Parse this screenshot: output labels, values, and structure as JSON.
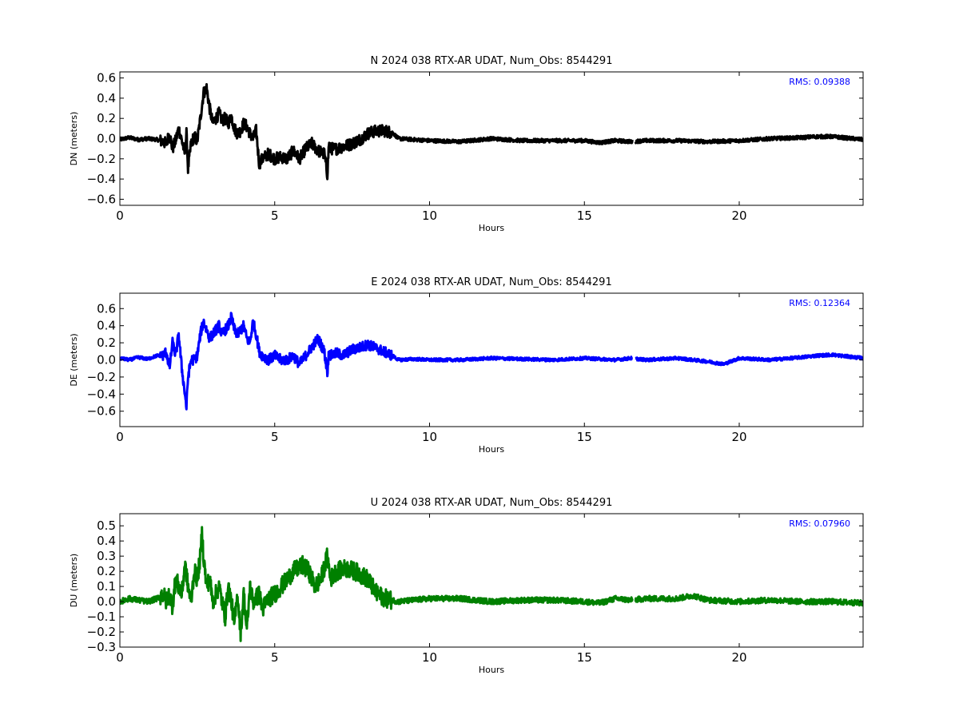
{
  "chart_data": [
    {
      "type": "line",
      "title": "N 2024 038 RTX-AR  UDAT, Num_Obs: 8544291",
      "xlabel": "Hours",
      "ylabel": "DN (meters)",
      "xlim": [
        0,
        24
      ],
      "ylim": [
        -0.66,
        0.66
      ],
      "xticks": [
        0,
        5,
        10,
        15,
        20
      ],
      "xtick_labels": [
        "0",
        "5",
        "10",
        "15",
        "20"
      ],
      "yticks": [
        -0.6,
        -0.4,
        -0.2,
        0.0,
        0.2,
        0.4,
        0.6
      ],
      "ytick_labels": [
        "−0.6",
        "−0.4",
        "−0.2",
        "0.0",
        "0.2",
        "0.4",
        "0.6"
      ],
      "annotation": "RMS:  0.09388",
      "annotation_color": "#0000ff",
      "line_color": "#000000",
      "grid": false,
      "gap": [
        16.55,
        16.65
      ],
      "series": [
        {
          "x": [
            0,
            0.3,
            0.6,
            0.9,
            1.2,
            1.4,
            1.5,
            1.6,
            1.7,
            1.8,
            1.9,
            2.0,
            2.1,
            2.15,
            2.2,
            2.3,
            2.4,
            2.5,
            2.6,
            2.7,
            2.8,
            2.9,
            3.0,
            3.1,
            3.2,
            3.3,
            3.4,
            3.5,
            3.6,
            3.7,
            3.8,
            3.9,
            4.0,
            4.1,
            4.2,
            4.3,
            4.4,
            4.5,
            4.6,
            4.8,
            5.0,
            5.2,
            5.4,
            5.6,
            5.8,
            6.0,
            6.2,
            6.4,
            6.6,
            6.7,
            6.75,
            6.8,
            7.0,
            7.2,
            7.5,
            7.8,
            8.0,
            8.2,
            8.5,
            8.8,
            9.0,
            9.5,
            10,
            11,
            12,
            13,
            14,
            15,
            15.5,
            16,
            16.5,
            17,
            18,
            19,
            20,
            21,
            22,
            22.5,
            23,
            24
          ],
          "y": [
            -0.01,
            0.01,
            -0.01,
            0.0,
            -0.01,
            -0.03,
            -0.05,
            0.05,
            -0.1,
            -0.02,
            0.1,
            -0.02,
            -0.15,
            0.05,
            -0.3,
            -0.05,
            0.02,
            -0.02,
            0.2,
            0.45,
            0.5,
            0.3,
            0.15,
            0.2,
            0.25,
            0.18,
            0.2,
            0.15,
            0.22,
            0.1,
            0.05,
            0.08,
            0.15,
            0.12,
            0.05,
            0.0,
            0.08,
            -0.25,
            -0.2,
            -0.15,
            -0.2,
            -0.18,
            -0.2,
            -0.12,
            -0.2,
            -0.1,
            -0.05,
            -0.12,
            -0.15,
            -0.35,
            -0.05,
            -0.1,
            -0.1,
            -0.08,
            -0.05,
            0.0,
            0.05,
            0.07,
            0.08,
            0.06,
            0.0,
            -0.01,
            -0.02,
            -0.03,
            0.0,
            -0.02,
            -0.02,
            -0.02,
            -0.04,
            -0.02,
            -0.03,
            -0.02,
            -0.02,
            -0.03,
            -0.02,
            0.0,
            0.01,
            0.02,
            0.02,
            -0.01
          ]
        }
      ]
    },
    {
      "type": "line",
      "title": "E 2024 038 RTX-AR  UDAT, Num_Obs: 8544291",
      "xlabel": "Hours",
      "ylabel": "DE (meters)",
      "xlim": [
        0,
        24
      ],
      "ylim": [
        -0.78,
        0.78
      ],
      "xticks": [
        0,
        5,
        10,
        15,
        20
      ],
      "xtick_labels": [
        "0",
        "5",
        "10",
        "15",
        "20"
      ],
      "yticks": [
        -0.6,
        -0.4,
        -0.2,
        0.0,
        0.2,
        0.4,
        0.6
      ],
      "ytick_labels": [
        "−0.6",
        "−0.4",
        "−0.2",
        "0.0",
        "0.2",
        "0.4",
        "0.6"
      ],
      "annotation": "RMS:  0.12364",
      "annotation_color": "#0000ff",
      "line_color": "#0000ff",
      "grid": false,
      "gap": [
        16.55,
        16.65
      ],
      "series": [
        {
          "x": [
            0,
            0.3,
            0.6,
            0.9,
            1.2,
            1.4,
            1.5,
            1.6,
            1.7,
            1.8,
            1.9,
            2.0,
            2.1,
            2.15,
            2.2,
            2.3,
            2.4,
            2.5,
            2.6,
            2.7,
            2.8,
            2.9,
            3.0,
            3.1,
            3.2,
            3.3,
            3.4,
            3.5,
            3.6,
            3.7,
            3.8,
            3.9,
            4.0,
            4.1,
            4.2,
            4.3,
            4.4,
            4.5,
            4.6,
            4.8,
            5.0,
            5.2,
            5.4,
            5.6,
            5.8,
            6.0,
            6.2,
            6.4,
            6.6,
            6.7,
            6.75,
            6.8,
            7.0,
            7.2,
            7.5,
            7.8,
            8.0,
            8.2,
            8.5,
            8.8,
            9.0,
            9.5,
            10,
            11,
            12,
            13,
            14,
            15,
            15.5,
            16,
            16.5,
            17,
            18,
            19,
            19.5,
            20,
            21,
            22,
            22.5,
            23,
            24
          ],
          "y": [
            0.02,
            0.0,
            0.03,
            0.01,
            0.05,
            0.05,
            0.1,
            -0.1,
            0.2,
            0.05,
            0.3,
            -0.1,
            -0.4,
            -0.55,
            -0.2,
            0.0,
            0.0,
            0.05,
            0.3,
            0.45,
            0.35,
            0.25,
            0.3,
            0.35,
            0.4,
            0.3,
            0.35,
            0.4,
            0.5,
            0.35,
            0.3,
            0.35,
            0.4,
            0.25,
            0.2,
            0.45,
            0.3,
            0.1,
            0.05,
            0.0,
            0.05,
            0.0,
            0.0,
            0.05,
            -0.05,
            0.05,
            0.15,
            0.25,
            0.1,
            -0.15,
            0.1,
            0.05,
            0.08,
            0.05,
            0.12,
            0.15,
            0.18,
            0.15,
            0.1,
            0.05,
            0.0,
            0.01,
            0.0,
            0.0,
            0.02,
            0.01,
            0.0,
            0.02,
            0.01,
            0.0,
            0.02,
            0.0,
            0.02,
            -0.02,
            -0.05,
            0.02,
            0.0,
            0.03,
            0.05,
            0.06,
            0.02
          ]
        }
      ]
    },
    {
      "type": "line",
      "title": "U 2024 038 RTX-AR  UDAT, Num_Obs: 8544291",
      "xlabel": "Hours",
      "ylabel": "DU (meters)",
      "xlim": [
        0,
        24
      ],
      "ylim": [
        -0.3,
        0.58
      ],
      "xticks": [
        0,
        5,
        10,
        15,
        20
      ],
      "xtick_labels": [
        "0",
        "5",
        "10",
        "15",
        "20"
      ],
      "yticks": [
        -0.3,
        -0.2,
        -0.1,
        0.0,
        0.1,
        0.2,
        0.3,
        0.4,
        0.5
      ],
      "ytick_labels": [
        "−0.3",
        "−0.2",
        "−0.1",
        "0.0",
        "0.1",
        "0.2",
        "0.3",
        "0.4",
        "0.5"
      ],
      "annotation": "RMS:  0.07960",
      "annotation_color": "#0000ff",
      "line_color": "#008000",
      "grid": false,
      "gap": [
        16.55,
        16.65
      ],
      "series": [
        {
          "x": [
            0,
            0.3,
            0.6,
            0.9,
            1.2,
            1.4,
            1.5,
            1.6,
            1.7,
            1.8,
            1.9,
            2.0,
            2.1,
            2.2,
            2.3,
            2.4,
            2.5,
            2.6,
            2.65,
            2.7,
            2.8,
            2.9,
            3.0,
            3.2,
            3.4,
            3.5,
            3.6,
            3.7,
            3.8,
            3.9,
            4.0,
            4.1,
            4.2,
            4.3,
            4.5,
            4.6,
            4.8,
            5.0,
            5.3,
            5.6,
            5.9,
            6.1,
            6.3,
            6.5,
            6.7,
            6.8,
            7.0,
            7.3,
            7.6,
            8.0,
            8.3,
            8.6,
            9.0,
            10,
            11,
            12,
            13,
            14,
            15,
            15.5,
            16,
            16.5,
            17,
            18,
            18.5,
            19,
            20,
            21,
            22,
            23,
            24
          ],
          "y": [
            0.0,
            0.02,
            0.01,
            0.0,
            0.02,
            0.05,
            0.0,
            0.05,
            -0.03,
            0.15,
            0.1,
            0.05,
            0.25,
            0.1,
            0.0,
            0.2,
            0.15,
            0.3,
            0.45,
            0.3,
            0.1,
            0.15,
            0.0,
            0.1,
            -0.1,
            0.1,
            0.0,
            -0.15,
            0.05,
            -0.2,
            0.05,
            -0.2,
            0.1,
            0.0,
            0.05,
            -0.05,
            0.02,
            0.05,
            0.12,
            0.2,
            0.24,
            0.2,
            0.1,
            0.15,
            0.3,
            0.15,
            0.2,
            0.22,
            0.2,
            0.15,
            0.05,
            0.02,
            0.0,
            0.02,
            0.02,
            0.0,
            0.01,
            0.01,
            0.0,
            -0.01,
            0.02,
            0.01,
            0.02,
            0.02,
            0.04,
            0.01,
            0.0,
            0.01,
            0.0,
            0.0,
            -0.01
          ]
        }
      ]
    }
  ]
}
